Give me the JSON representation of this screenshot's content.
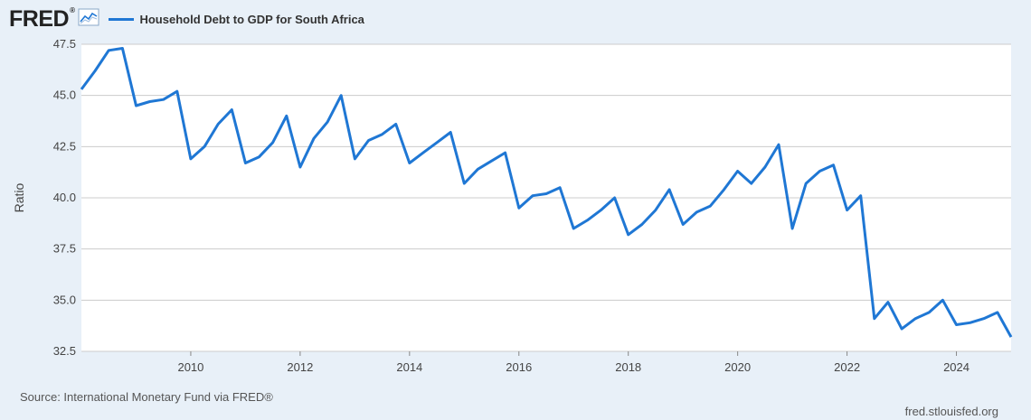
{
  "header": {
    "logo_text": "FRED",
    "logo_dot": "®",
    "logo_icon": "line-graph-icon",
    "series_label": "Household Debt to GDP for South Africa"
  },
  "colors": {
    "line": "#1f77d4",
    "plot_bg": "#ffffff",
    "grid": "#cccccc",
    "page_bg": "#e8f0f8"
  },
  "footer": {
    "source": "Source: International Monetary Fund via FRED®",
    "url": "fred.stlouisfed.org"
  },
  "chart_data": {
    "type": "line",
    "title": "",
    "xlabel": "",
    "ylabel": "Ratio",
    "xlim": [
      2008.0,
      2025.0
    ],
    "ylim": [
      32.5,
      47.5
    ],
    "yticks": [
      "32.5",
      "35.0",
      "37.5",
      "40.0",
      "42.5",
      "45.0",
      "47.5"
    ],
    "xticks": [
      "2010",
      "2012",
      "2014",
      "2016",
      "2018",
      "2020",
      "2022",
      "2024"
    ],
    "grid": true,
    "legend": "top-left",
    "series": [
      {
        "name": "Household Debt to GDP for South Africa",
        "x": [
          2008.0,
          2008.25,
          2008.5,
          2008.75,
          2009.0,
          2009.25,
          2009.5,
          2009.75,
          2010.0,
          2010.25,
          2010.5,
          2010.75,
          2011.0,
          2011.25,
          2011.5,
          2011.75,
          2012.0,
          2012.25,
          2012.5,
          2012.75,
          2013.0,
          2013.25,
          2013.5,
          2013.75,
          2014.0,
          2014.25,
          2014.5,
          2014.75,
          2015.0,
          2015.25,
          2015.5,
          2015.75,
          2016.0,
          2016.25,
          2016.5,
          2016.75,
          2017.0,
          2017.25,
          2017.5,
          2017.75,
          2018.0,
          2018.25,
          2018.5,
          2018.75,
          2019.0,
          2019.25,
          2019.5,
          2019.75,
          2020.0,
          2020.25,
          2020.5,
          2020.75,
          2021.0,
          2021.25,
          2021.5,
          2021.75,
          2022.0,
          2022.25,
          2022.5,
          2022.75,
          2023.0,
          2023.25,
          2023.5,
          2023.75,
          2024.0,
          2024.25,
          2024.5,
          2024.75,
          2025.0
        ],
        "values": [
          45.3,
          46.2,
          47.2,
          47.3,
          44.5,
          44.7,
          44.8,
          45.2,
          41.9,
          42.5,
          43.6,
          44.3,
          41.7,
          42.0,
          42.7,
          44.0,
          41.5,
          42.9,
          43.7,
          45.0,
          41.9,
          42.8,
          43.1,
          43.6,
          41.7,
          42.2,
          42.7,
          43.2,
          40.7,
          41.4,
          41.8,
          42.2,
          39.5,
          40.1,
          40.2,
          40.5,
          38.5,
          38.9,
          39.4,
          40.0,
          38.2,
          38.7,
          39.4,
          40.4,
          38.7,
          39.3,
          39.6,
          40.4,
          41.3,
          40.7,
          41.5,
          42.6,
          38.5,
          40.7,
          41.3,
          41.6,
          39.4,
          40.1,
          34.1,
          34.9,
          33.6,
          34.1,
          34.4,
          35.0,
          33.8,
          33.9,
          34.1,
          34.4,
          33.2
        ]
      }
    ]
  }
}
